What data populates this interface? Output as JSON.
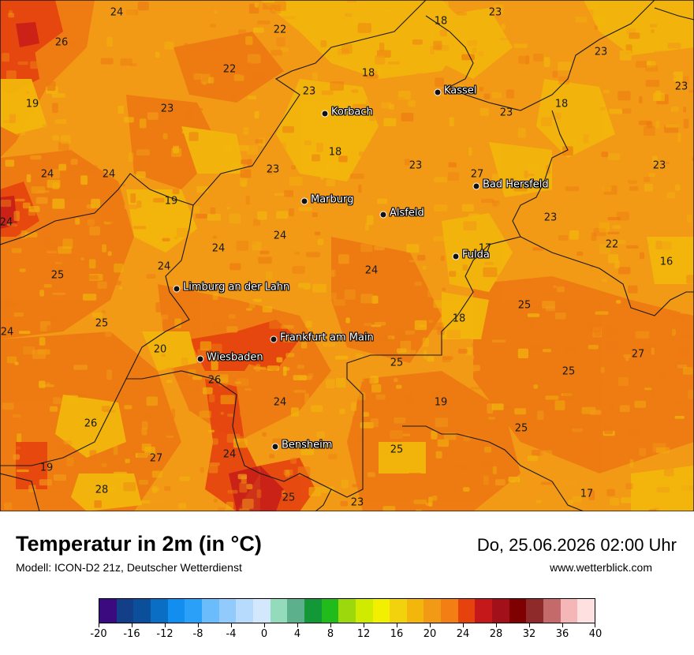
{
  "header": {
    "title": "Temperatur in 2m (in °C)",
    "model": "Modell: ICON-D2 21z, Deutscher Wetterdienst",
    "datetime": "Do, 25.06.2026 02:00 Uhr",
    "website": "www.wetterblick.com"
  },
  "cities": [
    {
      "name": "Kassel"
    },
    {
      "name": "Korbach"
    },
    {
      "name": "Bad Hersfeld"
    },
    {
      "name": "Marburg"
    },
    {
      "name": "Alsfeld"
    },
    {
      "name": "Fulda"
    },
    {
      "name": "Limburg an der Lahn"
    },
    {
      "name": "Frankfurt am Main"
    },
    {
      "name": "Wiesbaden"
    },
    {
      "name": "Bensheim"
    }
  ],
  "temperature_labels": [
    "24",
    "26",
    "22",
    "18",
    "23",
    "23",
    "22",
    "18",
    "23",
    "19",
    "23",
    "23",
    "18",
    "23",
    "23",
    "18",
    "24",
    "24",
    "19",
    "23",
    "23",
    "27",
    "24",
    "23",
    "22",
    "24",
    "24",
    "17",
    "16",
    "25",
    "24",
    "24",
    "25",
    "18",
    "25",
    "20",
    "24",
    "27",
    "25",
    "25",
    "26",
    "24",
    "19",
    "26",
    "25",
    "27",
    "24",
    "25",
    "19",
    "28",
    "25",
    "23",
    "17"
  ],
  "legend": {
    "tick_labels": [
      "-20",
      "-16",
      "-12",
      "-8",
      "-4",
      "0",
      "4",
      "8",
      "12",
      "16",
      "20",
      "24",
      "28",
      "32",
      "36",
      "40"
    ],
    "colors": [
      "#3a0a7e",
      "#123f88",
      "#0b4e99",
      "#0a6ec4",
      "#128ef0",
      "#2aa0f8",
      "#6bbcfb",
      "#92cbfb",
      "#b6dbfc",
      "#d4e8fd",
      "#93dbbb",
      "#5db08c",
      "#139838",
      "#22bb1c",
      "#9dd80c",
      "#d0ea00",
      "#f2f000",
      "#f2d20c",
      "#f2b60c",
      "#f29a16",
      "#f27e14",
      "#e6420e",
      "#c4181a",
      "#a2111a",
      "#7e0000",
      "#8e2a2a",
      "#c46a6a",
      "#f4b6b6",
      "#fee0e0"
    ]
  }
}
